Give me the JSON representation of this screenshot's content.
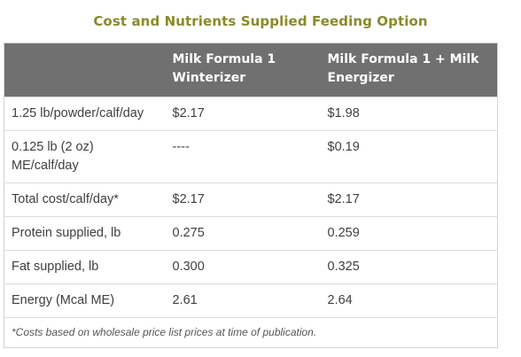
{
  "title": "Cost and Nutrients Supplied Feeding Option",
  "table": {
    "headers": [
      "",
      "Milk Formula 1 Winterizer",
      "Milk Formula 1 + Milk Energizer"
    ],
    "rows": [
      [
        "1.25 lb/powder/calf/day",
        "$2.17",
        "$1.98"
      ],
      [
        "0.125 lb (2 oz) ME/calf/day",
        "----",
        "$0.19"
      ],
      [
        "Total cost/calf/day*",
        "$2.17",
        "$2.17"
      ],
      [
        "Protein supplied, lb",
        "0.275",
        "0.259"
      ],
      [
        "Fat supplied, lb",
        "0.300",
        "0.325"
      ],
      [
        "Energy (Mcal ME)",
        "2.61",
        "2.64"
      ]
    ],
    "footnote": "*Costs based on wholesale price list prices at time of publication."
  }
}
